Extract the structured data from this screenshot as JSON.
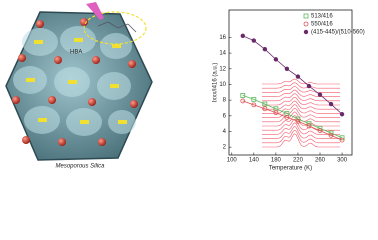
{
  "illustration": {
    "labels": [
      "HBA",
      "Mesoporous Silica"
    ]
  },
  "chart_data": {
    "type": "scatter",
    "x_label": "Temperature (K)",
    "y_label": "Ixxx/I416 (a.u.)",
    "x": [
      120,
      140,
      160,
      180,
      200,
      220,
      240,
      260,
      280,
      300
    ],
    "series": [
      {
        "name": "513/416",
        "color": "#5cb85c",
        "marker": "square",
        "values": [
          8.6,
          8.1,
          7.5,
          6.9,
          6.3,
          5.6,
          5.0,
          4.4,
          3.8,
          3.2
        ]
      },
      {
        "name": "550/416",
        "color": "#e05050",
        "marker": "circle",
        "values": [
          7.9,
          7.4,
          6.9,
          6.4,
          5.8,
          5.3,
          4.7,
          4.1,
          3.5,
          2.9
        ]
      },
      {
        "name": "(415-445)/(510-560)",
        "color": "#6a2a6a",
        "marker": "dot",
        "values": [
          16.2,
          15.6,
          14.5,
          13.2,
          12.0,
          11.0,
          9.8,
          8.7,
          7.5,
          6.2
        ]
      }
    ],
    "xlim": [
      95,
      318
    ],
    "ylim": [
      1,
      19.5
    ],
    "xticks": [
      100,
      140,
      180,
      220,
      260,
      300
    ],
    "yticks": [
      2,
      4,
      6,
      8,
      10,
      12,
      14,
      16
    ],
    "legend": "upper-right"
  }
}
